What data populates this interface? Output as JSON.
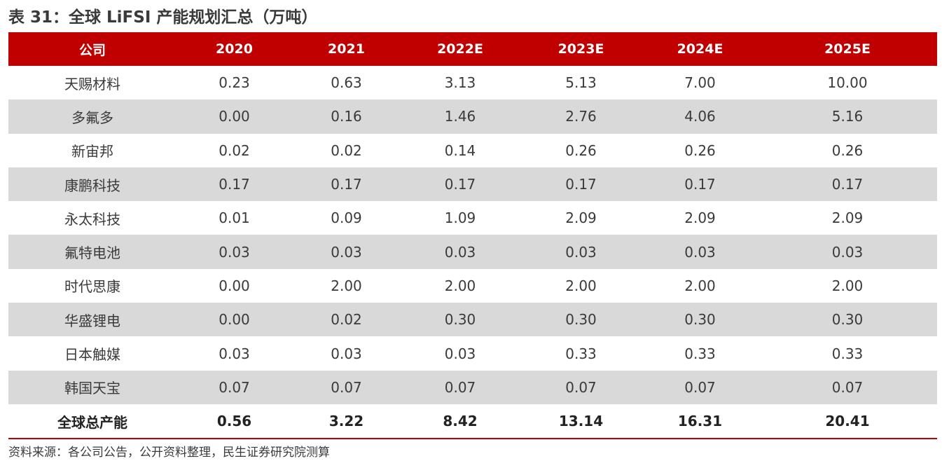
{
  "title": "表 31：全球 LiFSI 产能规划汇总（万吨）",
  "headers": [
    "公司",
    "2020",
    "2021",
    "2022E",
    "2023E",
    "2024E",
    "2025E"
  ],
  "rows": [
    [
      "天赐材料",
      "0.23",
      "0.63",
      "3.13",
      "5.13",
      "7.00",
      "10.00"
    ],
    [
      "多氟多",
      "0.00",
      "0.16",
      "1.46",
      "2.76",
      "4.06",
      "5.16"
    ],
    [
      "新宙邦",
      "0.02",
      "0.02",
      "0.14",
      "0.26",
      "0.26",
      "0.26"
    ],
    [
      "康鹏科技",
      "0.17",
      "0.17",
      "0.17",
      "0.17",
      "0.17",
      "0.17"
    ],
    [
      "永太科技",
      "0.01",
      "0.09",
      "1.09",
      "2.09",
      "2.09",
      "2.09"
    ],
    [
      "氟特电池",
      "0.03",
      "0.03",
      "0.03",
      "0.03",
      "0.03",
      "0.03"
    ],
    [
      "时代思康",
      "0.00",
      "2.00",
      "2.00",
      "2.00",
      "2.00",
      "2.00"
    ],
    [
      "华盛锂电",
      "0.00",
      "0.02",
      "0.30",
      "0.30",
      "0.30",
      "0.30"
    ],
    [
      "日本触媒",
      "0.03",
      "0.03",
      "0.03",
      "0.33",
      "0.33",
      "0.33"
    ],
    [
      "韩国天宝",
      "0.07",
      "0.07",
      "0.07",
      "0.07",
      "0.07",
      "0.07"
    ],
    [
      "全球总产能",
      "0.56",
      "3.22",
      "8.42",
      "13.14",
      "16.31",
      "20.41"
    ]
  ],
  "source": "资料来源：各公司公告，公开资料整理，民生证券研究院测算",
  "colors": {
    "header_bg": "#c00000",
    "shade_bg": "#d9d9d9",
    "rule": "#c00000"
  }
}
